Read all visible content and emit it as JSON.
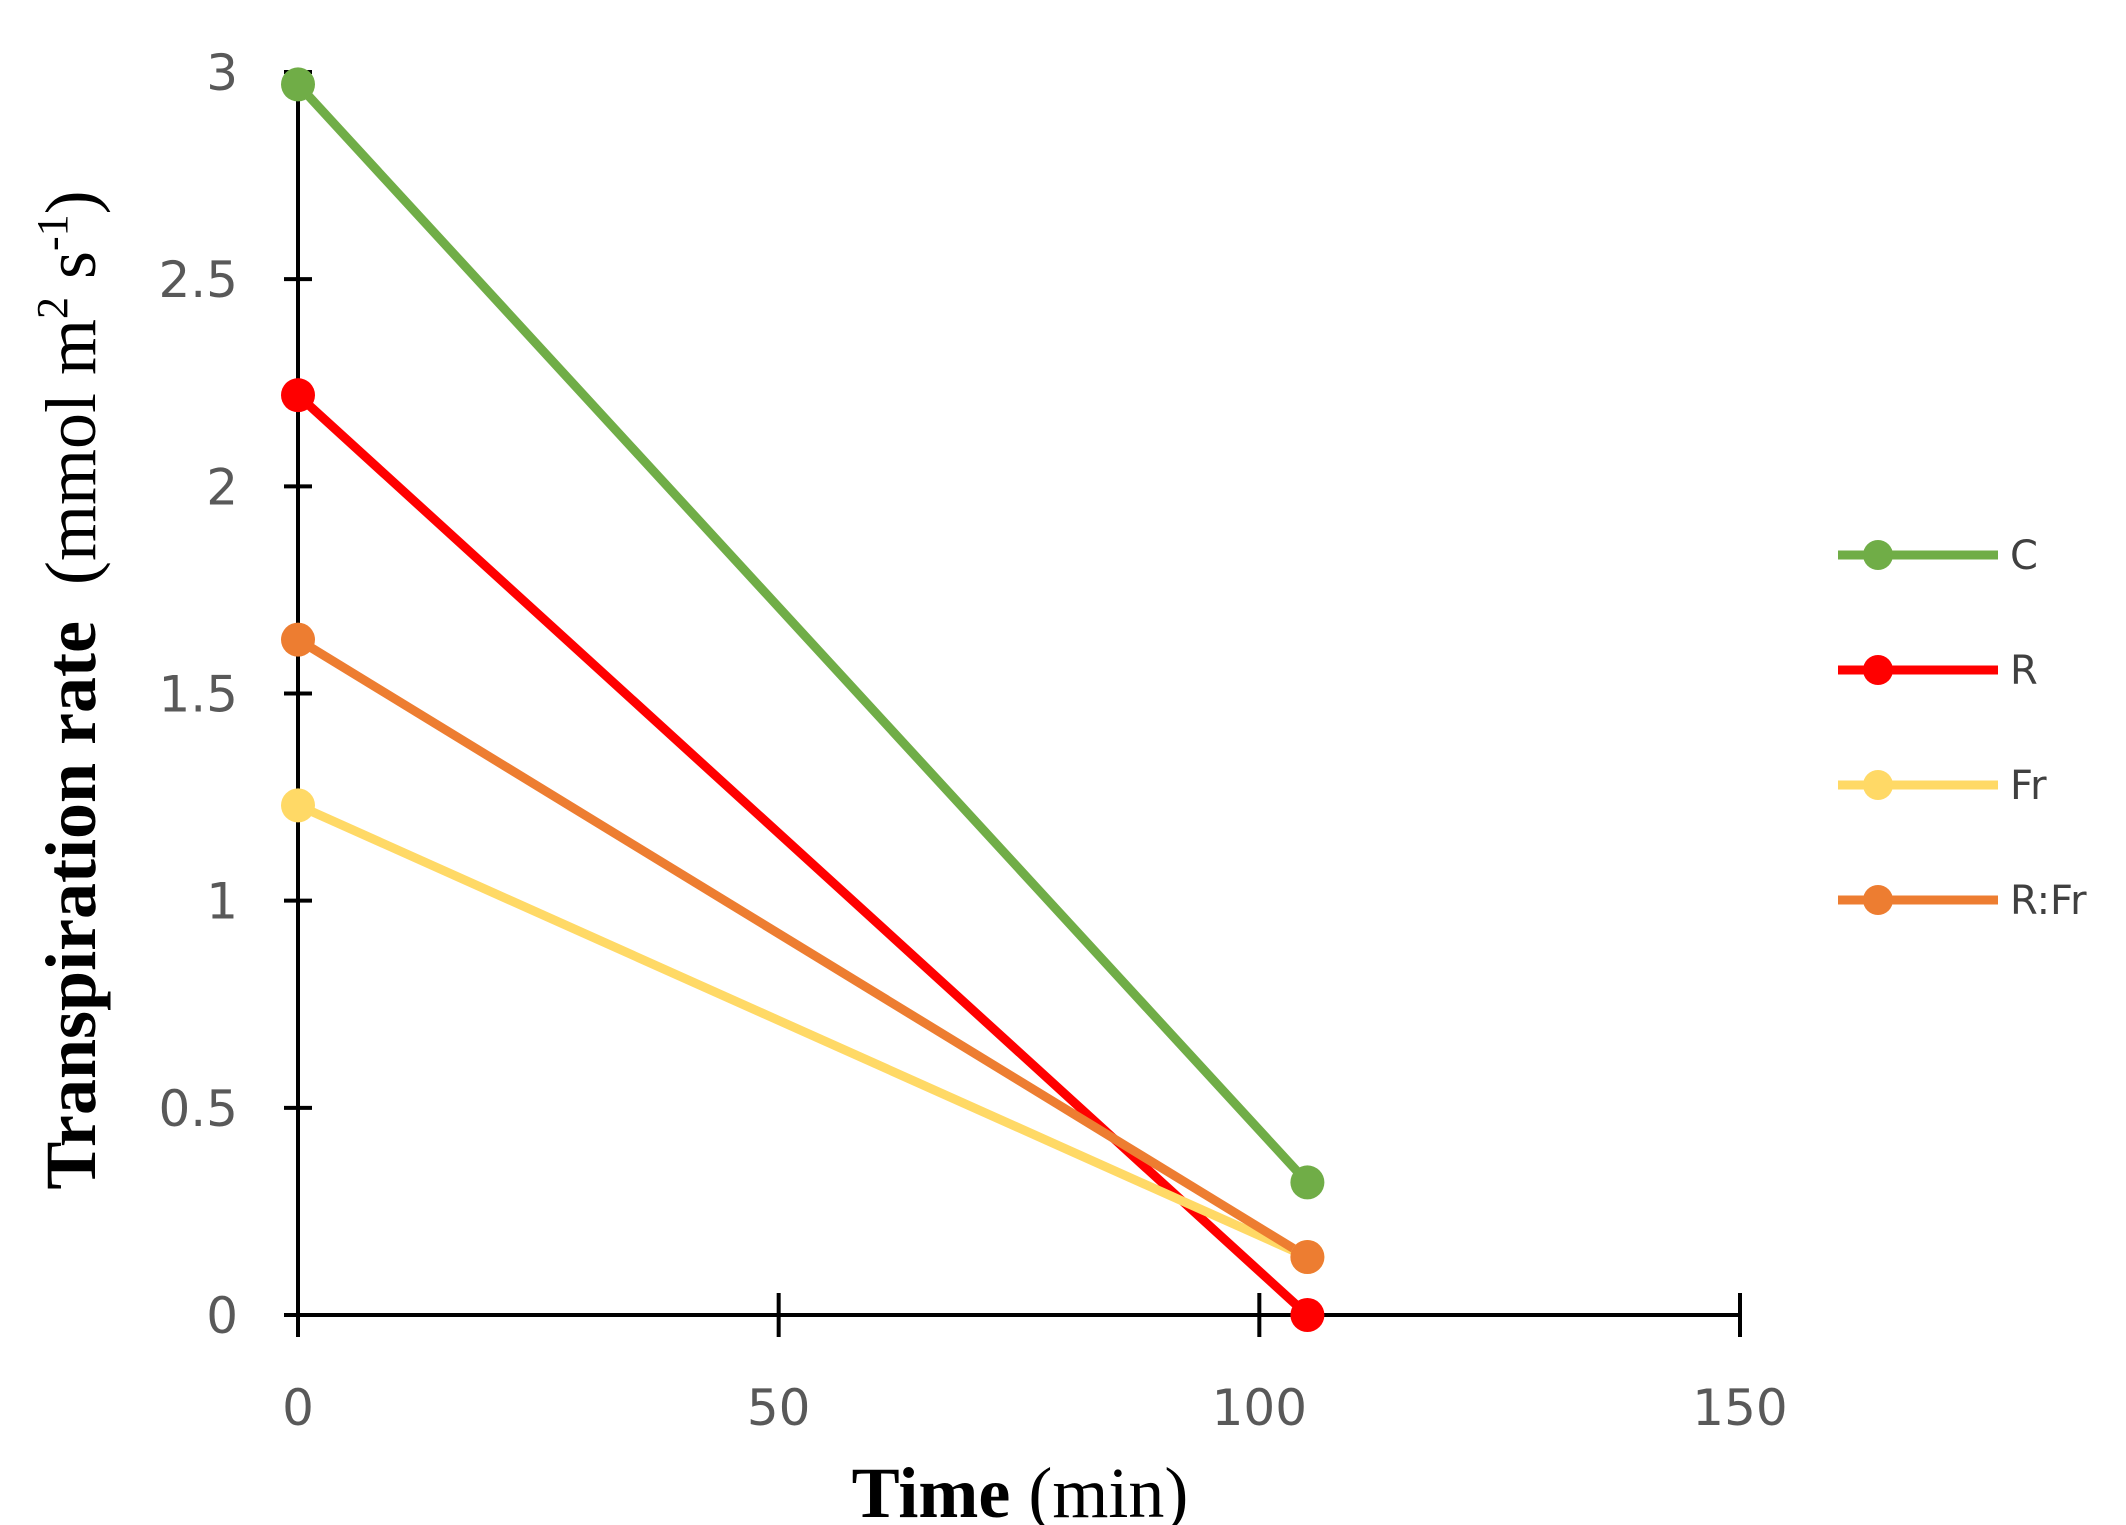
{
  "chart_data": {
    "type": "line",
    "title": "",
    "xlabel": {
      "bold": "Time",
      "rest": "(min)"
    },
    "ylabel": {
      "bold": "Transpiration rate",
      "rest_open": "(mmol m",
      "sup1": "2",
      "rest_mid": " s",
      "sup2": "-1",
      "rest_close": ")"
    },
    "xlim": [
      0,
      150
    ],
    "ylim": [
      0,
      3
    ],
    "xticks": [
      0,
      50,
      100,
      150
    ],
    "xtick_labels": [
      "0",
      "50",
      "100",
      "150"
    ],
    "yticks": [
      0,
      0.5,
      1,
      1.5,
      2,
      2.5,
      3
    ],
    "ytick_labels": [
      "0",
      "0.5",
      "1",
      "1.5",
      "2",
      "2.5",
      "3"
    ],
    "grid": false,
    "legend_position": "right",
    "x": [
      0,
      105
    ],
    "series": [
      {
        "name": "C",
        "color": "#70AD47",
        "values": [
          2.97,
          0.32
        ]
      },
      {
        "name": "R",
        "color": "#FF0000",
        "values": [
          2.22,
          0.0
        ]
      },
      {
        "name": "Fr",
        "color": "#FFD966",
        "values": [
          1.23,
          0.14
        ]
      },
      {
        "name": "R:Fr",
        "color": "#ED7D31",
        "values": [
          1.63,
          0.14
        ]
      }
    ]
  }
}
